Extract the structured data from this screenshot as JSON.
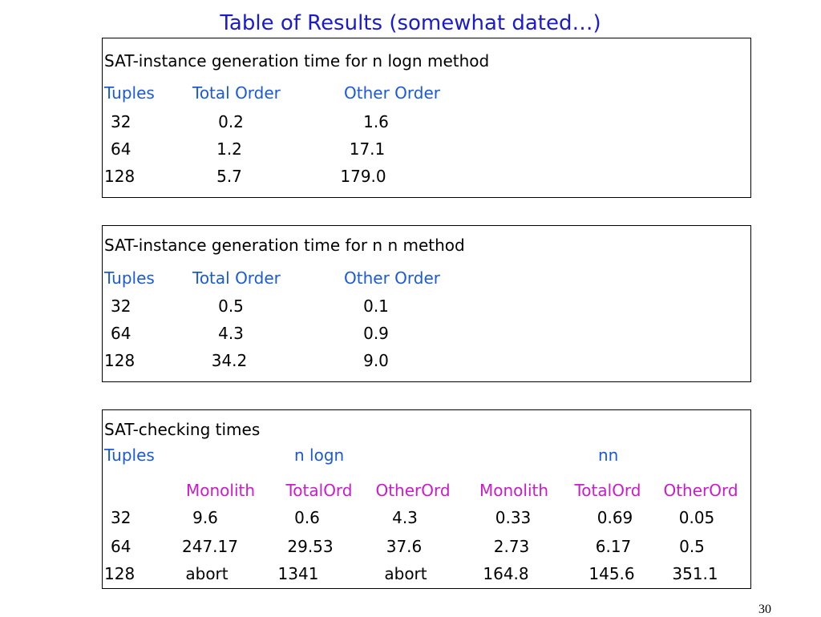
{
  "title": "Table of Results (somewhat dated…)",
  "page_number": "30",
  "table1": {
    "caption": "SAT-instance generation time for n logn method",
    "headers": [
      "Tuples",
      "Total Order",
      "Other Order"
    ],
    "rows": [
      [
        "32",
        "0.2",
        "1.6"
      ],
      [
        "64",
        "1.2",
        "17.1"
      ],
      [
        "128",
        "5.7",
        "179.0"
      ]
    ]
  },
  "table2": {
    "caption": "SAT-instance generation time for n n method",
    "headers": [
      "Tuples",
      "Total Order",
      "Other Order"
    ],
    "rows": [
      [
        "32",
        "0.5",
        "0.1"
      ],
      [
        "64",
        "4.3",
        "0.9"
      ],
      [
        "128",
        "34.2",
        "9.0"
      ]
    ]
  },
  "table3": {
    "caption": "SAT-checking times",
    "group_headers": [
      "Tuples",
      "n logn",
      "nn"
    ],
    "sub_headers": [
      "Monolith",
      "TotalOrd",
      "OtherOrd",
      "Monolith",
      "TotalOrd",
      "OtherOrd"
    ],
    "rows": [
      [
        "32",
        "9.6",
        "0.6",
        "4.3",
        "0.33",
        "0.69",
        "0.05"
      ],
      [
        "64",
        "247.17",
        "29.53",
        "37.6",
        "2.73",
        "6.17",
        "0.5"
      ],
      [
        "128",
        "abort",
        "1341",
        "abort",
        "164.8",
        "145.6",
        "351.1"
      ]
    ]
  },
  "colors": {
    "title": "#1a1ad0",
    "header": "#1a5ad8",
    "subheader": "#cc19cc"
  }
}
